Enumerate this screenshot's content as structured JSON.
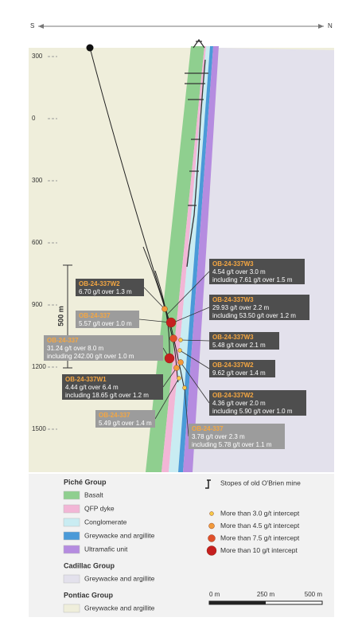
{
  "compass": {
    "south": "S",
    "north": "N"
  },
  "depth_labels": [
    "300",
    "0",
    "300",
    "600",
    "900",
    "1200",
    "1500"
  ],
  "vertical_scale": "500 m",
  "intercepts": [
    {
      "hole": "OB-24-337W2",
      "lines": [
        "6.70 g/t over 1.3 m"
      ]
    },
    {
      "hole": "OB-24-337",
      "lines": [
        "5.57 g/t over 1.0 m"
      ]
    },
    {
      "hole": "OB-24-337",
      "lines": [
        "31.24 g/t over 8.0 m",
        "including 242.00 g/t over 1.0 m"
      ]
    },
    {
      "hole": "OB-24-337W1",
      "lines": [
        "4.44 g/t over 6.4 m",
        "including 18.65 g/t over 1.2 m"
      ]
    },
    {
      "hole": "OB-24-337",
      "lines": [
        "5.49 g/t over 1.4 m"
      ]
    },
    {
      "hole": "OB-24-337W3",
      "lines": [
        "4.54 g/t over 3.0 m",
        "including 7.61 g/t over 1.5 m"
      ]
    },
    {
      "hole": "OB-24-337W3",
      "lines": [
        "29.93 g/t over 2.2 m",
        "including 53.50 g/t over 1.2 m"
      ]
    },
    {
      "hole": "OB-24-337W3",
      "lines": [
        "5.48 g/t over 2.1 m"
      ]
    },
    {
      "hole": "OB-24-337W2",
      "lines": [
        "9.62 g/t over 1.4 m"
      ]
    },
    {
      "hole": "OB-24-337W2",
      "lines": [
        "4.36 g/t over 2.0 m",
        "including 5.90 g/t over 1.0 m"
      ]
    },
    {
      "hole": "OB-24-337",
      "lines": [
        "3.78 g/t over 2.3 m",
        "including 5.78 g/t over 1.1 m"
      ]
    }
  ],
  "legend": {
    "groups": [
      {
        "name": "Piché Group",
        "items": [
          "Basalt",
          "QFP dyke",
          "Conglomerate",
          "Greywacke and argillite",
          "Ultramafic unit"
        ]
      },
      {
        "name": "Cadillac Group",
        "items": [
          "Greywacke and argillite"
        ]
      },
      {
        "name": "Pontiac Group",
        "items": [
          "Greywacke and argillite"
        ]
      }
    ],
    "stopes": "Stopes of old O'Brien mine",
    "grades": [
      "More than 3.0 g/t intercept",
      "More than 4.5 g/t intercept",
      "More than 7.5 g/t intercept",
      "More than 10 g/t intercept"
    ]
  },
  "scale_bar": [
    "0 m",
    "250 m",
    "500 m"
  ]
}
